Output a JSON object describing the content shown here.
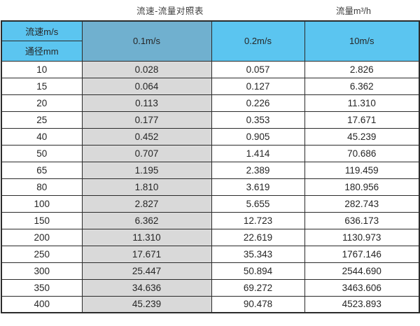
{
  "page_titles": {
    "table_title": "流速-流量对照表",
    "unit_label": "流量m³/h"
  },
  "table": {
    "header": {
      "velocity_label": "流速m/s",
      "diameter_label": "通径mm",
      "velocity_columns": [
        "0.1m/s",
        "0.2m/s",
        "10m/s"
      ]
    },
    "rows": [
      {
        "diameter": "10",
        "flow_0_1": "0.028",
        "flow_0_2": "0.057",
        "flow_10": "2.826"
      },
      {
        "diameter": "15",
        "flow_0_1": "0.064",
        "flow_0_2": "0.127",
        "flow_10": "6.362"
      },
      {
        "diameter": "20",
        "flow_0_1": "0.113",
        "flow_0_2": "0.226",
        "flow_10": "11.310"
      },
      {
        "diameter": "25",
        "flow_0_1": "0.177",
        "flow_0_2": "0.353",
        "flow_10": "17.671"
      },
      {
        "diameter": "40",
        "flow_0_1": "0.452",
        "flow_0_2": "0.905",
        "flow_10": "45.239"
      },
      {
        "diameter": "50",
        "flow_0_1": "0.707",
        "flow_0_2": "1.414",
        "flow_10": "70.686"
      },
      {
        "diameter": "65",
        "flow_0_1": "1.195",
        "flow_0_2": "2.389",
        "flow_10": "119.459"
      },
      {
        "diameter": "80",
        "flow_0_1": "1.810",
        "flow_0_2": "3.619",
        "flow_10": "180.956"
      },
      {
        "diameter": "100",
        "flow_0_1": "2.827",
        "flow_0_2": "5.655",
        "flow_10": "282.743"
      },
      {
        "diameter": "150",
        "flow_0_1": "6.362",
        "flow_0_2": "12.723",
        "flow_10": "636.173"
      },
      {
        "diameter": "200",
        "flow_0_1": "11.310",
        "flow_0_2": "22.619",
        "flow_10": "1130.973"
      },
      {
        "diameter": "250",
        "flow_0_1": "17.671",
        "flow_0_2": "35.343",
        "flow_10": "1767.146"
      },
      {
        "diameter": "300",
        "flow_0_1": "25.447",
        "flow_0_2": "50.894",
        "flow_10": "2544.690"
      },
      {
        "diameter": "350",
        "flow_0_1": "34.636",
        "flow_0_2": "69.272",
        "flow_10": "3463.606"
      },
      {
        "diameter": "400",
        "flow_0_1": "45.239",
        "flow_0_2": "90.478",
        "flow_10": "4523.893"
      }
    ]
  },
  "colors": {
    "header_blue": "#5bc5f0",
    "header_highlight_blue": "#70b0cf",
    "highlight_column_gray": "#d9d9d9",
    "border": "#2b2b2b",
    "text": "#262626"
  },
  "chart_data": {
    "type": "table",
    "title": "流速-流量对照表",
    "unit": "流量m³/h",
    "columns": [
      "通径mm",
      "0.1m/s",
      "0.2m/s",
      "10m/s"
    ],
    "rows": [
      [
        10,
        0.028,
        0.057,
        2.826
      ],
      [
        15,
        0.064,
        0.127,
        6.362
      ],
      [
        20,
        0.113,
        0.226,
        11.31
      ],
      [
        25,
        0.177,
        0.353,
        17.671
      ],
      [
        40,
        0.452,
        0.905,
        45.239
      ],
      [
        50,
        0.707,
        1.414,
        70.686
      ],
      [
        65,
        1.195,
        2.389,
        119.459
      ],
      [
        80,
        1.81,
        3.619,
        180.956
      ],
      [
        100,
        2.827,
        5.655,
        282.743
      ],
      [
        150,
        6.362,
        12.723,
        636.173
      ],
      [
        200,
        11.31,
        22.619,
        1130.973
      ],
      [
        250,
        17.671,
        35.343,
        1767.146
      ],
      [
        300,
        25.447,
        50.894,
        2544.69
      ],
      [
        350,
        34.636,
        69.272,
        3463.606
      ],
      [
        400,
        45.239,
        90.478,
        4523.893
      ]
    ]
  }
}
